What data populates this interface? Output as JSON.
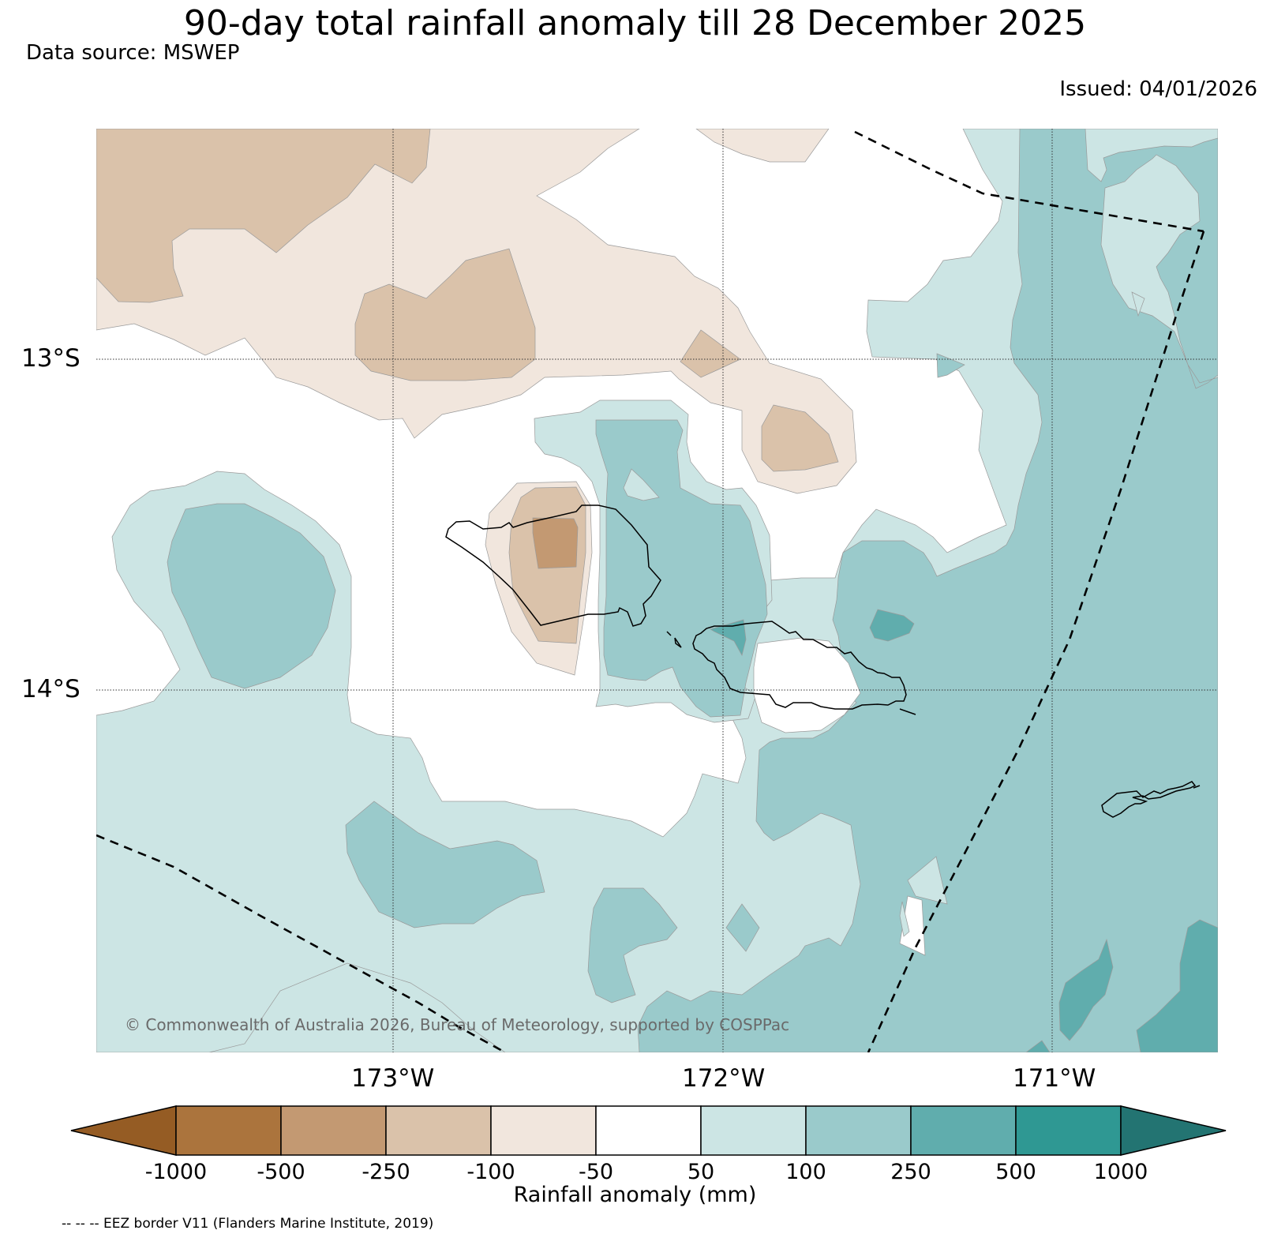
{
  "title": "90-day total rainfall anomaly till 28 December 2025",
  "data_source": "Data source: MSWEP",
  "issued": "Issued: 04/01/2026",
  "copyright": "© Commonwealth of Australia 2026, Bureau of Meteorology, supported by COSPPac",
  "lat_labels": [
    "13°S",
    "14°S"
  ],
  "lon_labels": [
    "173°W",
    "172°W",
    "171°W"
  ],
  "colorbar": {
    "title": "Rainfall anomaly (mm)",
    "ticks": [
      "-1000",
      "-500",
      "-250",
      "-100",
      "-50",
      "50",
      "100",
      "250",
      "500",
      "1000"
    ],
    "colors": [
      "#955c24",
      "#ab743d",
      "#c39972",
      "#dac2aa",
      "#f1e6dd",
      "#ffffff",
      "#cce5e4",
      "#9acacb",
      "#60adad",
      "#2f9893",
      "#237472"
    ]
  },
  "eez_note": "-- -- -- EEZ border V11 (Flanders Marine Institute, 2019)"
}
